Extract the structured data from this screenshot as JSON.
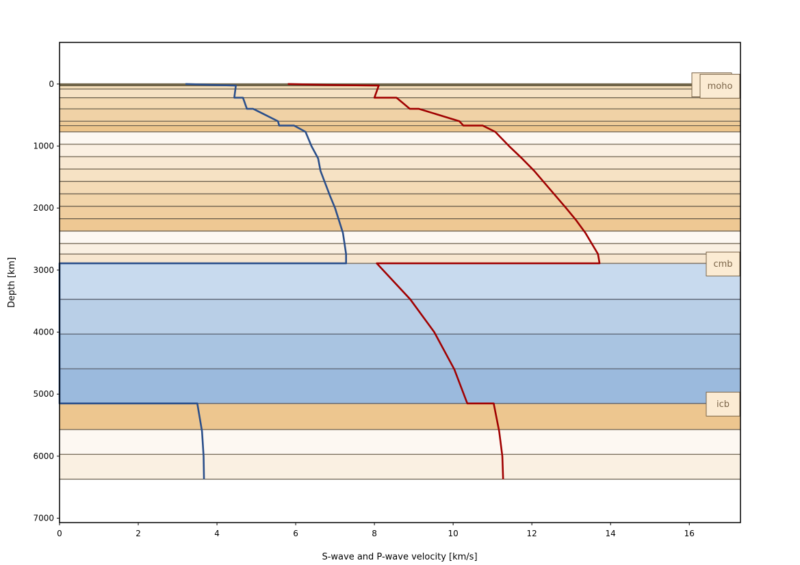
{
  "chart_data": {
    "type": "line",
    "title": "",
    "xlabel": "S-wave and P-wave velocity [km/s]",
    "ylabel": "Depth [km]",
    "xlim": [
      0,
      17.3
    ],
    "ylim": [
      7071,
      -671
    ],
    "y_inverted": true,
    "xticks": [
      0,
      2,
      4,
      6,
      8,
      10,
      12,
      14,
      16
    ],
    "yticks": [
      0,
      1000,
      2000,
      3000,
      4000,
      5000,
      6000,
      7000
    ],
    "grid": false,
    "legend": "none",
    "series": [
      {
        "color": "#2b4f8a",
        "points": [
          [
            3.2,
            0
          ],
          [
            3.9,
            15
          ],
          [
            4.48,
            24
          ],
          [
            4.44,
            220
          ],
          [
            4.66,
            220
          ],
          [
            4.76,
            400
          ],
          [
            4.92,
            400
          ],
          [
            5.55,
            600
          ],
          [
            5.58,
            670
          ],
          [
            5.96,
            670
          ],
          [
            6.25,
            771
          ],
          [
            6.4,
            1000
          ],
          [
            6.57,
            1200
          ],
          [
            6.63,
            1400
          ],
          [
            6.75,
            1600
          ],
          [
            6.87,
            1800
          ],
          [
            7.0,
            2000
          ],
          [
            7.1,
            2200
          ],
          [
            7.2,
            2400
          ],
          [
            7.28,
            2741
          ],
          [
            7.28,
            2891
          ],
          [
            0,
            2891
          ],
          [
            0,
            5150
          ],
          [
            3.5,
            5150
          ],
          [
            3.62,
            5600
          ],
          [
            3.66,
            6000
          ],
          [
            3.67,
            6371
          ]
        ]
      },
      {
        "color": "#a00000",
        "points": [
          [
            5.8,
            0
          ],
          [
            6.8,
            15
          ],
          [
            8.11,
            24
          ],
          [
            8.0,
            220
          ],
          [
            8.56,
            220
          ],
          [
            8.9,
            400
          ],
          [
            9.13,
            400
          ],
          [
            10.16,
            600
          ],
          [
            10.26,
            670
          ],
          [
            10.75,
            670
          ],
          [
            11.07,
            771
          ],
          [
            11.42,
            1000
          ],
          [
            11.75,
            1200
          ],
          [
            12.06,
            1400
          ],
          [
            12.33,
            1600
          ],
          [
            12.6,
            1800
          ],
          [
            12.87,
            2000
          ],
          [
            13.13,
            2200
          ],
          [
            13.36,
            2400
          ],
          [
            13.68,
            2741
          ],
          [
            13.72,
            2891
          ],
          [
            8.06,
            2891
          ],
          [
            8.91,
            3471
          ],
          [
            9.52,
            4000
          ],
          [
            10.03,
            4600
          ],
          [
            10.36,
            5150
          ],
          [
            11.03,
            5150
          ],
          [
            11.17,
            5600
          ],
          [
            11.25,
            6000
          ],
          [
            11.27,
            6371
          ]
        ]
      }
    ],
    "layers": [
      {
        "top": 0,
        "bottom": 24,
        "color": "#e2c492"
      },
      {
        "top": 24,
        "bottom": 80,
        "color": "#f3ddb8"
      },
      {
        "top": 80,
        "bottom": 220,
        "color": "#f6e2c4"
      },
      {
        "top": 220,
        "bottom": 400,
        "color": "#f3d9b2"
      },
      {
        "top": 400,
        "bottom": 600,
        "color": "#f0d2a6"
      },
      {
        "top": 600,
        "bottom": 670,
        "color": "#eecb98"
      },
      {
        "top": 670,
        "bottom": 771,
        "color": "#edc58c"
      },
      {
        "top": 771,
        "bottom": 971,
        "color": "#fdf8f2"
      },
      {
        "top": 971,
        "bottom": 1171,
        "color": "#fbf0e2"
      },
      {
        "top": 1171,
        "bottom": 1371,
        "color": "#f8e8d2"
      },
      {
        "top": 1371,
        "bottom": 1571,
        "color": "#f6e2c4"
      },
      {
        "top": 1571,
        "bottom": 1771,
        "color": "#f4dbb6"
      },
      {
        "top": 1771,
        "bottom": 1971,
        "color": "#f2d5aa"
      },
      {
        "top": 1971,
        "bottom": 2171,
        "color": "#f0ce9f"
      },
      {
        "top": 2171,
        "bottom": 2371,
        "color": "#eec893"
      },
      {
        "top": 2371,
        "bottom": 2571,
        "color": "#fdf8f2"
      },
      {
        "top": 2571,
        "bottom": 2741,
        "color": "#faf0e2"
      },
      {
        "top": 2741,
        "bottom": 2891,
        "color": "#f7e6cf"
      },
      {
        "top": 2891,
        "bottom": 3471,
        "color": "#c8daee"
      },
      {
        "top": 3471,
        "bottom": 4031,
        "color": "#b9cfe7"
      },
      {
        "top": 4031,
        "bottom": 4591,
        "color": "#a9c4e1"
      },
      {
        "top": 4591,
        "bottom": 5150,
        "color": "#9bbadd"
      },
      {
        "top": 5150,
        "bottom": 5571,
        "color": "#edc68f"
      },
      {
        "top": 5571,
        "bottom": 5971,
        "color": "#fdf8f2"
      },
      {
        "top": 5971,
        "bottom": 6371,
        "color": "#faf0e2"
      }
    ],
    "annotations": [
      {
        "text": "moho",
        "depth": 24
      },
      {
        "text": "cmb",
        "depth": 2891
      },
      {
        "text": "icb",
        "depth": 5150
      }
    ]
  }
}
